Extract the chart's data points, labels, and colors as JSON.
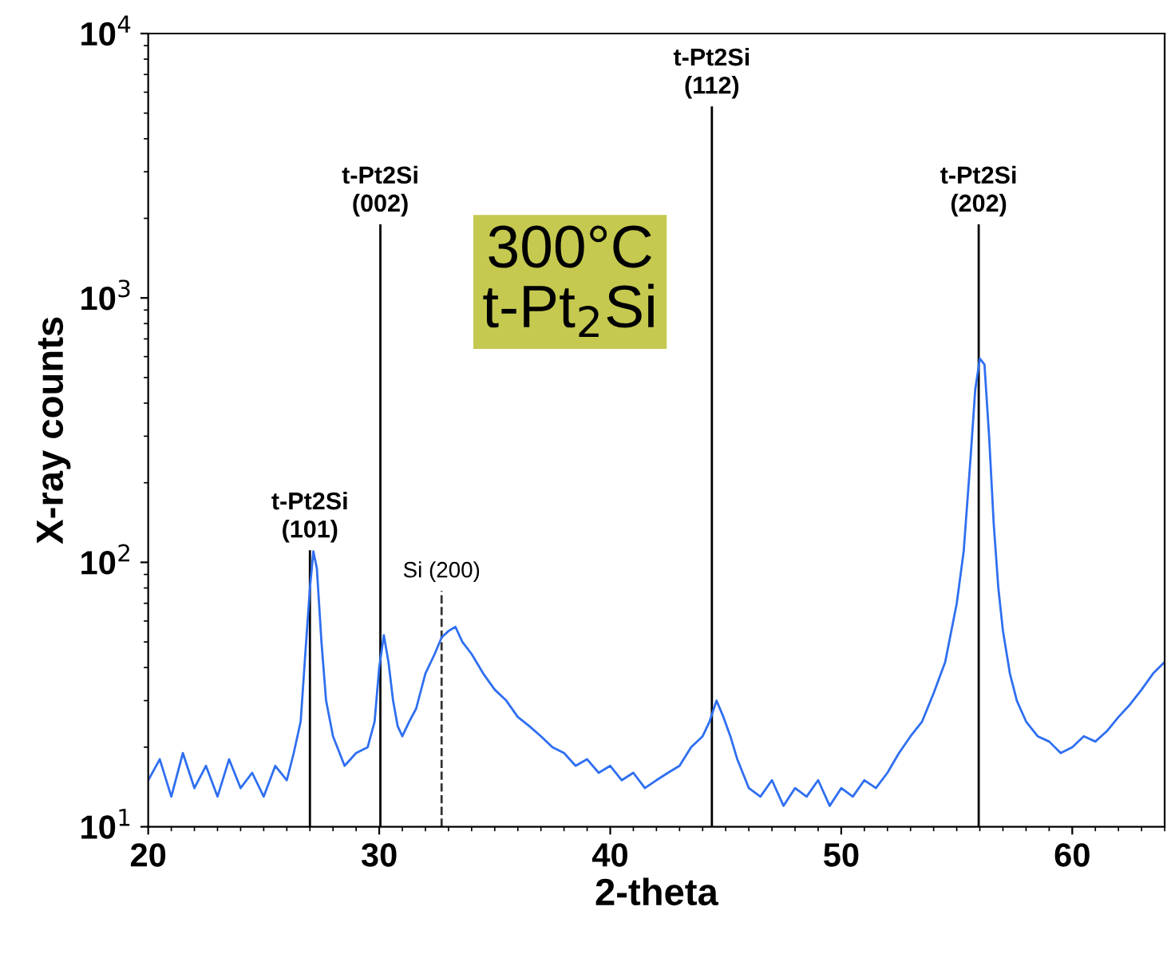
{
  "chart_data": {
    "type": "line",
    "xlabel": "2-theta",
    "ylabel": "X-ray counts",
    "log": "y",
    "xlim": [
      20,
      64
    ],
    "xticks": [
      20,
      30,
      40,
      50,
      60
    ],
    "ylim": [
      10,
      10000
    ],
    "yticks": [
      {
        "value": 10,
        "label": "10$^{1}$"
      },
      {
        "value": 100,
        "label": "10$^{2}$"
      },
      {
        "value": 1000,
        "label": "10$^{3}$"
      },
      {
        "value": 10000,
        "label": "10$^{4}$"
      }
    ],
    "grid": false,
    "legend": false,
    "marker": "none",
    "line_style": "solid",
    "series": [
      {
        "color": "#2f6ff0",
        "x": [
          20,
          20.5,
          21,
          21.5,
          22,
          22.5,
          23,
          23.5,
          24,
          24.5,
          25,
          25.5,
          26,
          26.3,
          26.6,
          26.8,
          27.0,
          27.15,
          27.3,
          27.5,
          27.7,
          28.0,
          28.5,
          29.0,
          29.5,
          29.8,
          30.0,
          30.2,
          30.4,
          30.6,
          30.8,
          31.0,
          31.3,
          31.6,
          32.0,
          32.4,
          32.7,
          33.0,
          33.3,
          33.6,
          34.0,
          34.5,
          35.0,
          35.5,
          36.0,
          36.5,
          37,
          37.5,
          38,
          38.5,
          39,
          39.5,
          40,
          40.5,
          41,
          41.5,
          42,
          42.5,
          43,
          43.5,
          44,
          44.3,
          44.6,
          44.9,
          45.2,
          45.5,
          46,
          46.5,
          47,
          47.5,
          48,
          48.5,
          49,
          49.5,
          50,
          50.5,
          51,
          51.5,
          52,
          52.5,
          53,
          53.5,
          54,
          54.5,
          55,
          55.3,
          55.6,
          55.8,
          56.0,
          56.2,
          56.4,
          56.6,
          56.8,
          57.0,
          57.3,
          57.6,
          58,
          58.5,
          59,
          59.5,
          60,
          60.5,
          61,
          61.5,
          62,
          62.5,
          63,
          63.5,
          64
        ],
        "values": [
          15,
          18,
          13,
          19,
          14,
          17,
          13,
          18,
          14,
          16,
          13,
          17,
          15,
          19,
          25,
          45,
          80,
          110,
          95,
          50,
          30,
          22,
          17,
          19,
          20,
          25,
          40,
          53,
          42,
          30,
          24,
          22,
          25,
          28,
          38,
          45,
          52,
          55,
          57,
          50,
          45,
          38,
          33,
          30,
          26,
          24,
          22,
          20,
          19,
          17,
          18,
          16,
          17,
          15,
          16,
          14,
          15,
          16,
          17,
          20,
          22,
          25,
          30,
          26,
          22,
          18,
          14,
          13,
          15,
          12,
          14,
          13,
          15,
          12,
          14,
          13,
          15,
          14,
          16,
          19,
          22,
          25,
          32,
          42,
          70,
          110,
          250,
          450,
          590,
          560,
          300,
          140,
          80,
          55,
          38,
          30,
          25,
          22,
          21,
          19,
          20,
          22,
          21,
          23,
          26,
          29,
          33,
          38,
          42
        ]
      }
    ],
    "ref_lines": [
      {
        "axis": "x",
        "value": 27.0,
        "color": "#000000",
        "line_style": "solid"
      },
      {
        "axis": "x",
        "value": 30.05,
        "color": "#000000",
        "line_style": "solid"
      },
      {
        "axis": "x",
        "value": 32.7,
        "color": "#333333",
        "line_style": "dashed"
      },
      {
        "axis": "x",
        "value": 44.4,
        "color": "#000000",
        "line_style": "solid"
      },
      {
        "axis": "x",
        "value": 55.95,
        "color": "#000000",
        "line_style": "solid"
      }
    ],
    "annotations": [
      {
        "text": "t-Pt2Si\n(101)",
        "x": 27.0,
        "y": 110
      },
      {
        "text": "t-Pt2Si\n(002)",
        "x": 30.05,
        "y": 1880
      },
      {
        "text": "Si (200)",
        "x": 32.7,
        "y": 78
      },
      {
        "text": "t-Pt2Si\n(112)",
        "x": 44.4,
        "y": 5250
      },
      {
        "text": "t-Pt2Si\n(202)",
        "x": 55.95,
        "y": 1880
      },
      "300°C\nt-Pt$_{2}$Si"
    ]
  }
}
